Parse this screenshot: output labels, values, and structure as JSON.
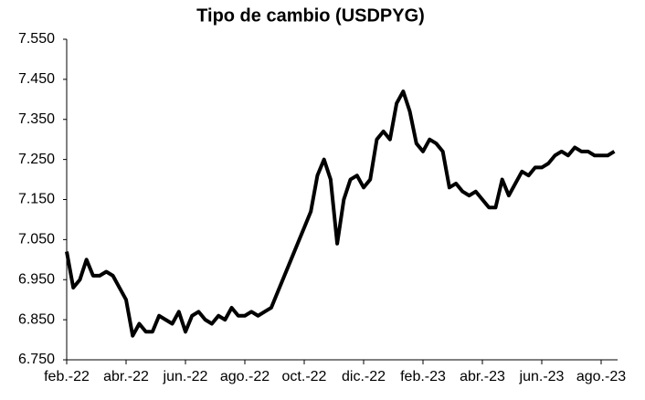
{
  "chart_data": {
    "type": "line",
    "title": "Tipo de cambio (USDPYG)",
    "categories": [
      "feb.-22",
      null,
      null,
      null,
      null,
      null,
      null,
      null,
      null,
      "abr.-22",
      null,
      null,
      null,
      null,
      null,
      null,
      null,
      null,
      "jun.-22",
      null,
      null,
      null,
      null,
      null,
      null,
      null,
      null,
      "ago.-22",
      null,
      null,
      null,
      null,
      null,
      null,
      null,
      null,
      "oct.-22",
      null,
      null,
      null,
      null,
      null,
      null,
      null,
      null,
      "dic.-22",
      null,
      null,
      null,
      null,
      null,
      null,
      null,
      null,
      "feb.-23",
      null,
      null,
      null,
      null,
      null,
      null,
      null,
      null,
      "abr.-23",
      null,
      null,
      null,
      null,
      null,
      null,
      null,
      null,
      "jun.-23",
      null,
      null,
      null,
      null,
      null,
      null,
      null,
      null,
      "ago.-23",
      null,
      null
    ],
    "series": [
      {
        "name": "USDPYG",
        "color": "#000000",
        "values": [
          7.02,
          6.93,
          6.95,
          7.0,
          6.96,
          6.96,
          6.97,
          6.96,
          6.93,
          6.9,
          6.81,
          6.84,
          6.82,
          6.82,
          6.86,
          6.85,
          6.84,
          6.87,
          6.82,
          6.86,
          6.87,
          6.85,
          6.84,
          6.86,
          6.85,
          6.88,
          6.86,
          6.86,
          6.87,
          6.86,
          6.87,
          6.88,
          6.92,
          6.96,
          7.0,
          7.04,
          7.08,
          7.12,
          7.21,
          7.25,
          7.2,
          7.04,
          7.15,
          7.2,
          7.21,
          7.18,
          7.2,
          7.3,
          7.32,
          7.3,
          7.39,
          7.42,
          7.37,
          7.29,
          7.27,
          7.3,
          7.29,
          7.27,
          7.18,
          7.19,
          7.17,
          7.16,
          7.17,
          7.15,
          7.13,
          7.13,
          7.2,
          7.16,
          7.19,
          7.22,
          7.21,
          7.23,
          7.23,
          7.24,
          7.26,
          7.27,
          7.26,
          7.28,
          7.27,
          7.27,
          7.26,
          7.26,
          7.26,
          7.27
        ]
      }
    ],
    "ylim": [
      6.75,
      7.55
    ],
    "yticks": [
      {
        "value": 6.75,
        "label": "6.750"
      },
      {
        "value": 6.85,
        "label": "6.850"
      },
      {
        "value": 6.95,
        "label": "6.950"
      },
      {
        "value": 7.05,
        "label": "7.050"
      },
      {
        "value": 7.15,
        "label": "7.150"
      },
      {
        "value": 7.25,
        "label": "7.250"
      },
      {
        "value": 7.35,
        "label": "7.350"
      },
      {
        "value": 7.45,
        "label": "7.450"
      },
      {
        "value": 7.55,
        "label": "7.550"
      }
    ],
    "grid": false
  }
}
